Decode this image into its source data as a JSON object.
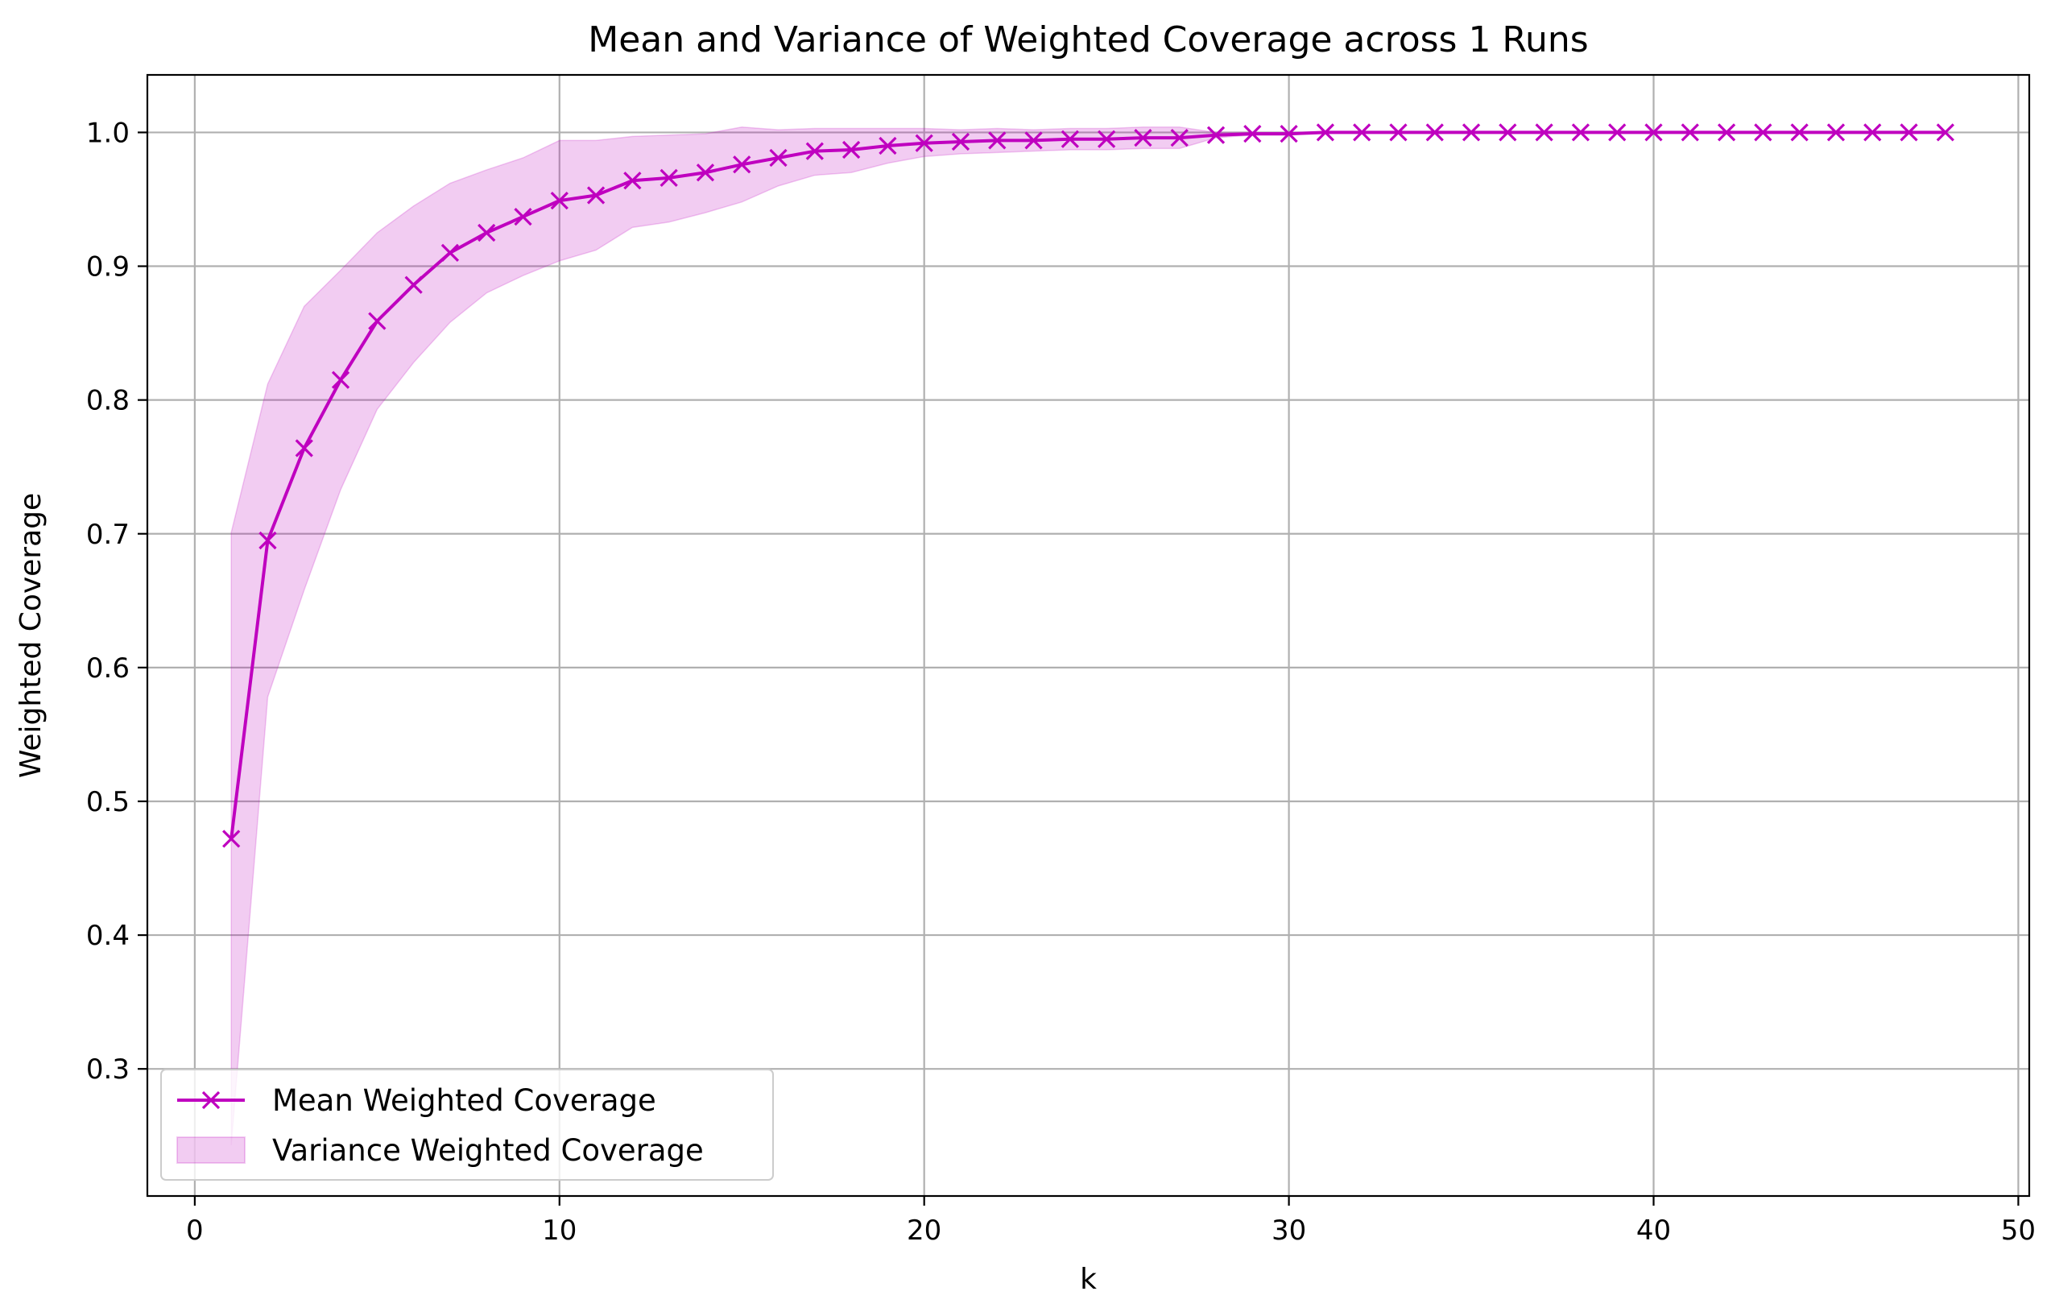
{
  "chart_data": {
    "type": "line",
    "title": "Mean and Variance of Weighted Coverage across 1 Runs",
    "xlabel": "k",
    "ylabel": "Weighted Coverage",
    "xlim": [
      -1.3,
      50.3
    ],
    "ylim": [
      0.205,
      1.043
    ],
    "xticks": [
      0,
      10,
      20,
      30,
      40,
      50
    ],
    "xtick_labels": [
      "0",
      "10",
      "20",
      "30",
      "40",
      "50"
    ],
    "yticks": [
      0.3,
      0.4,
      0.5,
      0.6,
      0.7,
      0.8,
      0.9,
      1.0
    ],
    "ytick_labels": [
      "0.3",
      "0.4",
      "0.5",
      "0.6",
      "0.7",
      "0.8",
      "0.9",
      "1.0"
    ],
    "grid": true,
    "legend_position": "lower-left",
    "x": [
      1,
      2,
      3,
      4,
      5,
      6,
      7,
      8,
      9,
      10,
      11,
      12,
      13,
      14,
      15,
      16,
      17,
      18,
      19,
      20,
      21,
      22,
      23,
      24,
      25,
      26,
      27,
      28,
      29,
      30,
      31,
      32,
      33,
      34,
      35,
      36,
      37,
      38,
      39,
      40,
      41,
      42,
      43,
      44,
      45,
      46,
      47,
      48
    ],
    "series": [
      {
        "name": "Mean Weighted Coverage",
        "kind": "line",
        "marker": "x",
        "color": "#bf00bf",
        "values": [
          0.472,
          0.695,
          0.764,
          0.815,
          0.859,
          0.886,
          0.91,
          0.925,
          0.937,
          0.949,
          0.953,
          0.964,
          0.966,
          0.97,
          0.976,
          0.981,
          0.986,
          0.987,
          0.99,
          0.992,
          0.993,
          0.994,
          0.994,
          0.995,
          0.995,
          0.996,
          0.996,
          0.998,
          0.999,
          0.999,
          1.0,
          1.0,
          1.0,
          1.0,
          1.0,
          1.0,
          1.0,
          1.0,
          1.0,
          1.0,
          1.0,
          1.0,
          1.0,
          1.0,
          1.0,
          1.0,
          1.0,
          1.0
        ]
      },
      {
        "name": "Variance Weighted Coverage",
        "kind": "band",
        "color": "#bf00bf",
        "opacity": 0.2,
        "lower": [
          0.243,
          0.578,
          0.658,
          0.733,
          0.793,
          0.828,
          0.858,
          0.88,
          0.893,
          0.904,
          0.912,
          0.929,
          0.933,
          0.94,
          0.948,
          0.96,
          0.968,
          0.97,
          0.977,
          0.982,
          0.984,
          0.985,
          0.986,
          0.987,
          0.987,
          0.988,
          0.988,
          0.996,
          0.998,
          0.998,
          1.0,
          1.0,
          1.0,
          1.0,
          1.0,
          1.0,
          1.0,
          1.0,
          1.0,
          1.0,
          1.0,
          1.0,
          1.0,
          1.0,
          1.0,
          1.0,
          1.0,
          1.0
        ],
        "upper": [
          0.701,
          0.812,
          0.87,
          0.897,
          0.925,
          0.945,
          0.962,
          0.972,
          0.981,
          0.994,
          0.994,
          0.997,
          0.998,
          0.999,
          1.004,
          1.002,
          1.003,
          1.003,
          1.003,
          1.003,
          1.002,
          1.003,
          1.002,
          1.003,
          1.003,
          1.004,
          1.004,
          1.0,
          1.0,
          1.0,
          1.0,
          1.0,
          1.0,
          1.0,
          1.0,
          1.0,
          1.0,
          1.0,
          1.0,
          1.0,
          1.0,
          1.0,
          1.0,
          1.0,
          1.0,
          1.0,
          1.0,
          1.0
        ]
      }
    ]
  }
}
